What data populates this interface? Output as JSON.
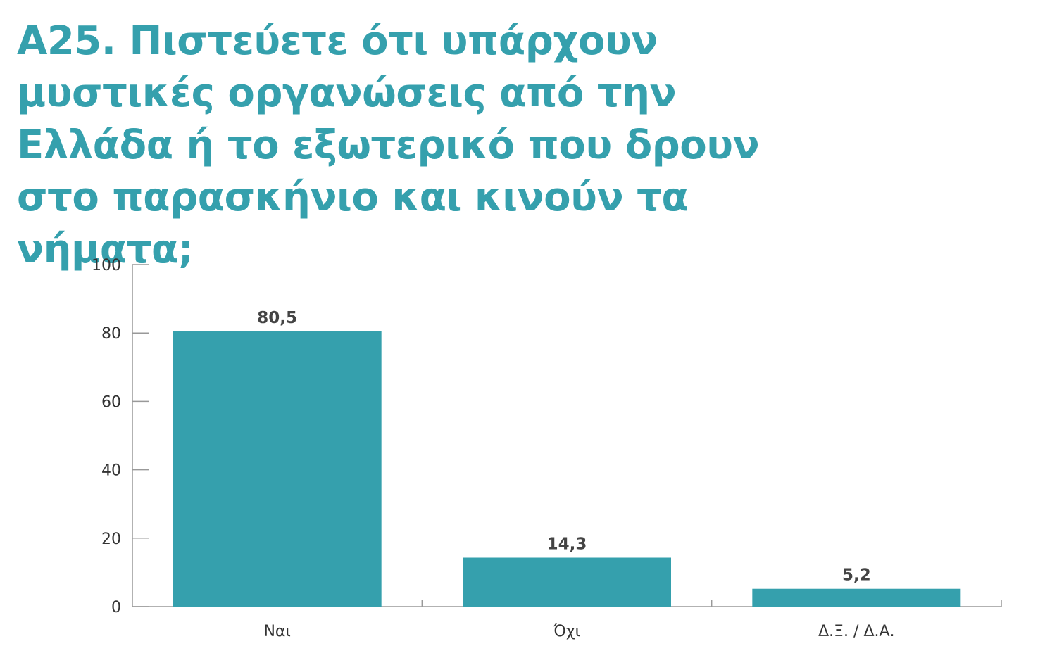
{
  "chart_data": {
    "type": "bar",
    "title": "Α25. Πιστεύετε ότι υπάρχουν μυστικές οργανώσεις από την Ελλάδα ή το εξωτερικό που δρουν στο παρασκήνιο και κινούν τα νήματα;",
    "categories": [
      "Ναι",
      "Όχι",
      "Δ.Ξ. / Δ.Α."
    ],
    "values": [
      80.5,
      14.3,
      5.2
    ],
    "value_labels": [
      "80,5",
      "14,3",
      "5,2"
    ],
    "ylim": [
      0,
      100
    ],
    "yticks": [
      "0",
      "20",
      "40",
      "60",
      "80",
      "100"
    ],
    "xlabel": "",
    "ylabel": "",
    "grid": false,
    "legend": "none",
    "colors": {
      "bar": "#35a0ad",
      "title": "#35a0ad",
      "axis": "#999999",
      "text": "#333333"
    }
  }
}
